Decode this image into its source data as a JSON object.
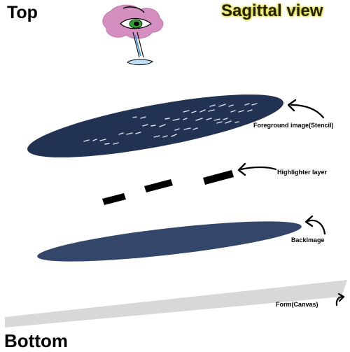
{
  "top_label": "Top",
  "bottom_label": "Bottom",
  "view_label": "Sagittal view",
  "layers": [
    {
      "id": "foreground",
      "label": "Foreground image(Stencil)",
      "color": "#223252"
    },
    {
      "id": "highlighter",
      "label": "Highlighter layer",
      "color": "#000000"
    },
    {
      "id": "backimage",
      "label": "BackImage",
      "color": "#34466a"
    },
    {
      "id": "form",
      "label": "Form(Canvas)",
      "color": "#d8d8d8"
    }
  ],
  "eye_icon": "eye-observer-icon",
  "eye_colors": {
    "blob": "#d58ec0",
    "iris": "#2ea32e"
  }
}
